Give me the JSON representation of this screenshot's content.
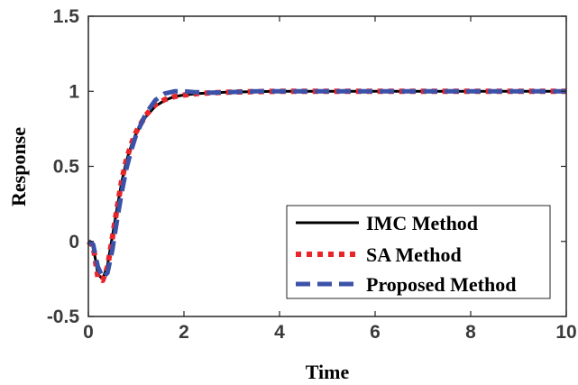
{
  "chart_data": {
    "type": "line",
    "title": "",
    "xlabel": "Time",
    "ylabel": "Response",
    "xlim": [
      0,
      10
    ],
    "ylim": [
      -0.5,
      1.5
    ],
    "xticks": [
      "0",
      "2",
      "4",
      "6",
      "8",
      "10"
    ],
    "yticks": [
      "-0.5",
      "0",
      "0.5",
      "1",
      "1.5"
    ],
    "grid": false,
    "legend_position": "bottom-right",
    "series": [
      {
        "name": "IMC Method",
        "color": "#000000",
        "style": "solid",
        "x": [
          0,
          0.1,
          0.2,
          0.3,
          0.4,
          0.5,
          0.6,
          0.7,
          0.8,
          0.9,
          1.0,
          1.2,
          1.4,
          1.6,
          1.8,
          2.0,
          2.3,
          2.6,
          3.0,
          3.5,
          4,
          5,
          6,
          7,
          8,
          9,
          10
        ],
        "y": [
          0,
          -0.03,
          -0.22,
          -0.25,
          -0.16,
          0.03,
          0.22,
          0.4,
          0.54,
          0.64,
          0.72,
          0.83,
          0.9,
          0.94,
          0.965,
          0.975,
          0.985,
          0.99,
          0.995,
          0.998,
          1.0,
          1.0,
          1.0,
          1.0,
          1.0,
          1.0,
          1.0
        ]
      },
      {
        "name": "SA Method",
        "color": "#e8252a",
        "style": "dotted",
        "x": [
          0,
          0.1,
          0.2,
          0.3,
          0.4,
          0.5,
          0.6,
          0.7,
          0.8,
          0.9,
          1.0,
          1.2,
          1.4,
          1.6,
          1.8,
          2.0,
          2.3,
          2.6,
          3.0,
          3.5,
          4,
          5,
          6,
          7,
          8,
          9,
          10
        ],
        "y": [
          0,
          -0.03,
          -0.24,
          -0.26,
          -0.17,
          0.02,
          0.22,
          0.41,
          0.55,
          0.65,
          0.73,
          0.84,
          0.91,
          0.945,
          0.965,
          0.975,
          0.985,
          0.99,
          0.995,
          0.998,
          1.0,
          1.0,
          1.0,
          1.0,
          1.0,
          1.0,
          1.0
        ]
      },
      {
        "name": "Proposed Method",
        "color": "#3b52a8",
        "style": "dashed",
        "x": [
          0,
          0.1,
          0.2,
          0.3,
          0.4,
          0.5,
          0.6,
          0.7,
          0.8,
          0.9,
          1.0,
          1.2,
          1.4,
          1.6,
          1.8,
          2.0,
          2.2,
          2.5,
          3.0,
          3.5,
          4,
          5,
          6,
          7,
          8,
          9,
          10
        ],
        "y": [
          0,
          -0.02,
          -0.17,
          -0.24,
          -0.21,
          -0.06,
          0.14,
          0.33,
          0.49,
          0.61,
          0.71,
          0.85,
          0.94,
          0.985,
          1.0,
          1.0,
          0.995,
          0.99,
          0.995,
          1.0,
          1.0,
          1.0,
          1.0,
          1.0,
          1.0,
          1.0,
          1.0
        ]
      }
    ]
  }
}
